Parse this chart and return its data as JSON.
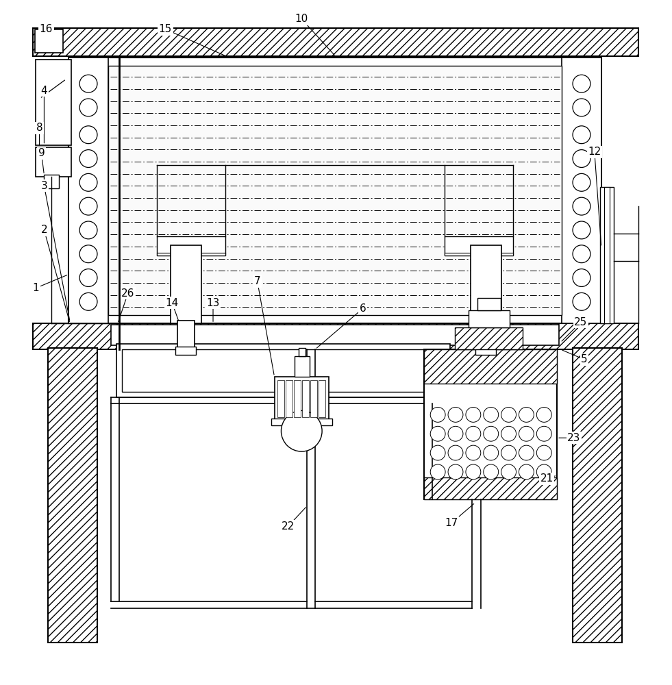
{
  "fig_width": 9.81,
  "fig_height": 10.0,
  "dpi": 100,
  "bg_color": "#ffffff"
}
